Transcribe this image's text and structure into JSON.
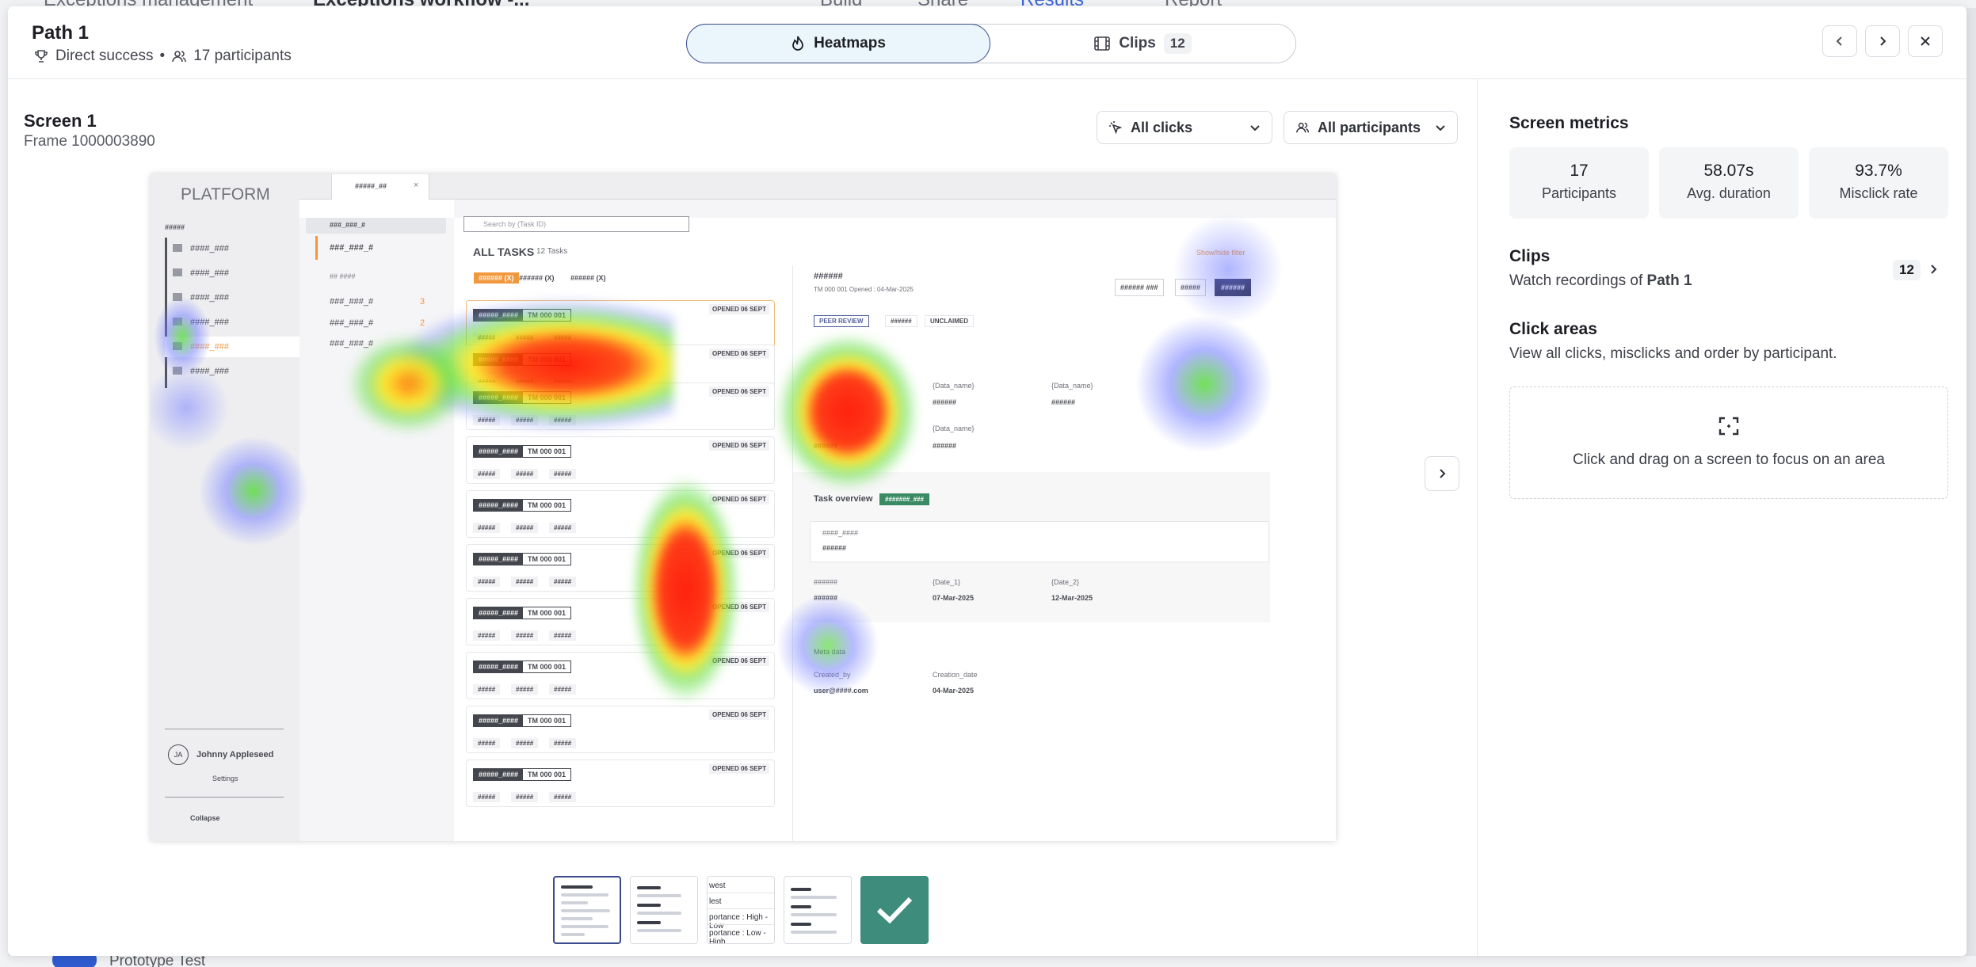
{
  "background": {
    "breadcrumb": [
      "Exceptions management",
      "Exceptions workflow -..."
    ],
    "tabs": [
      "Build",
      "Share",
      "Results",
      "Report"
    ],
    "footer_label": "Prototype Test"
  },
  "header": {
    "title": "Path 1",
    "outcome": "Direct success",
    "separator": "•",
    "participants": "17 participants",
    "view_tabs": [
      {
        "label": "Heatmaps",
        "icon": "flame-icon",
        "active": true
      },
      {
        "label": "Clips",
        "icon": "film-icon",
        "count": "12",
        "active": false
      }
    ],
    "buttons": {
      "prev": "chevron-left-icon",
      "next": "chevron-right-icon",
      "close": "close-icon"
    }
  },
  "screen": {
    "name": "Screen 1",
    "frame": "Frame 1000003890",
    "filters": [
      {
        "label": "All clicks",
        "icon": "cursor-click-icon"
      },
      {
        "label": "All participants",
        "icon": "users-icon"
      }
    ],
    "next_screen": "chevron-right-icon"
  },
  "mock": {
    "brand": "PLATFORM",
    "tab_label": "#####_##",
    "sidebar_heading": "#####",
    "sidebar_items": [
      "####_###",
      "####_###",
      "####_###",
      "####_###",
      "####_###",
      "####_###"
    ],
    "user_name": "Johnny Appleseed",
    "user_initials": "JA",
    "settings": "Settings",
    "collapse": "Collapse",
    "mid_group": "###_###_#",
    "mid_active": "###_###_#",
    "mid_heading": "## ####",
    "mid_rows": [
      {
        "label": "###_###_#",
        "count": "3"
      },
      {
        "label": "###_###_#",
        "count": "2"
      },
      {
        "label": "###_###_#",
        "count": ""
      }
    ],
    "search_placeholder": "Search by (Task ID)",
    "all_tasks": "ALL TASKS",
    "task_count": "12 Tasks",
    "show_filter": "Show/hide filter",
    "filter_tabs": [
      "###### (X)",
      "###### (X)",
      "###### (X)"
    ],
    "card_chip": "#####_####",
    "card_id": "TM 000 001",
    "card_opened": "OPENED 06 SEPT",
    "card_pill": "#####",
    "detail_title": "######",
    "detail_meta": "TM 000 001   Opened : 04-Mar-2025",
    "detail_buttons": [
      "###### ###",
      "#####",
      "######"
    ],
    "status_chips": [
      "PEER REVIEW",
      "######",
      "UNCLAIMED"
    ],
    "data_labels": [
      "{Data_name}",
      "{Data_name}",
      "{Data_name}"
    ],
    "data_values": [
      "######",
      "######",
      "######",
      "######"
    ],
    "task_overview": "Task overview",
    "task_badge": "#######_###",
    "box_label": "####_####",
    "box_value": "######",
    "dates": [
      {
        "label": "######",
        "value": "######"
      },
      {
        "label": "{Date_1}",
        "value": "07-Mar-2025"
      },
      {
        "label": "{Date_2}",
        "value": "12-Mar-2025"
      }
    ],
    "meta_title": "Meta data",
    "meta": [
      {
        "label": "Created_by",
        "value": "user@####.com"
      },
      {
        "label": "Creation_date",
        "value": "04-Mar-2025"
      }
    ]
  },
  "thumbnails": [
    {
      "label": "",
      "selected": true
    },
    {
      "label": "",
      "selected": false
    },
    {
      "lines": [
        "west",
        "lest",
        "portance : High - Low",
        "portance : Low - High"
      ],
      "selected": false
    },
    {
      "label": "",
      "selected": false
    },
    {
      "label": "completed-check-icon",
      "selected": false,
      "color": "#3d8c7c"
    }
  ],
  "metrics_panel": {
    "title": "Screen metrics",
    "metrics": [
      {
        "value": "17",
        "label": "Participants"
      },
      {
        "value": "58.07s",
        "label": "Avg. duration"
      },
      {
        "value": "93.7%",
        "label": "Misclick rate"
      }
    ],
    "clips_title": "Clips",
    "clips_desc_prefix": "Watch recordings of ",
    "clips_desc_path": "Path 1",
    "clips_count": "12",
    "areas_title": "Click areas",
    "areas_desc": "View all clicks, misclicks and order by participant.",
    "areas_hint": "Click and drag on a screen to focus on an area"
  },
  "colors": {
    "accent": "#3a4a8c",
    "active_tab_bg": "#eaf6fb",
    "thumb_green": "#3d8c7c",
    "chip_orange": "#f08a24"
  }
}
